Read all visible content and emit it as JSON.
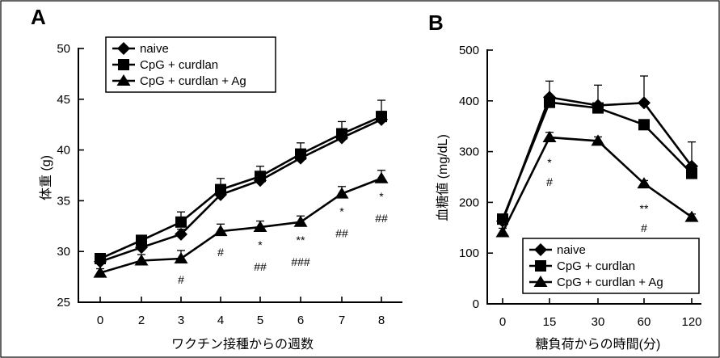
{
  "figure": {
    "panels": [
      {
        "letter": "A"
      },
      {
        "letter": "B"
      }
    ]
  },
  "chart_data": [
    {
      "panel": "A",
      "type": "line",
      "xlabel": "ワクチン接種からの週数",
      "ylabel": "体重 (g)",
      "categories": [
        "0",
        "2",
        "3",
        "4",
        "5",
        "6",
        "7",
        "8"
      ],
      "ylim": [
        25,
        50
      ],
      "yticks": [
        25,
        30,
        35,
        40,
        45,
        50
      ],
      "grid": false,
      "legend_position": "top-left",
      "series": [
        {
          "name": "naive",
          "marker": "diamond",
          "values": [
            29.0,
            30.4,
            31.7,
            35.6,
            37.0,
            39.2,
            41.2,
            43.0
          ],
          "errors": [
            0.4,
            0.4,
            0.5,
            0.6,
            0.6,
            0.6,
            0.7,
            0.8
          ]
        },
        {
          "name": "CpG + curdlan",
          "marker": "square",
          "values": [
            29.3,
            31.1,
            32.9,
            36.1,
            37.4,
            39.6,
            41.6,
            43.3
          ],
          "errors": [
            0.5,
            0.4,
            1.0,
            1.1,
            1.0,
            1.1,
            1.2,
            1.6
          ]
        },
        {
          "name": "CpG + curdlan + Ag",
          "marker": "triangle",
          "values": [
            27.9,
            29.1,
            29.3,
            32.0,
            32.4,
            32.9,
            35.7,
            37.2
          ],
          "errors": [
            0.4,
            0.6,
            0.8,
            0.7,
            0.6,
            0.6,
            0.7,
            0.8
          ]
        }
      ],
      "annotations": [
        {
          "category": "3",
          "lines": [
            "#"
          ]
        },
        {
          "category": "4",
          "lines": [
            "#"
          ]
        },
        {
          "category": "5",
          "lines": [
            "*",
            "##"
          ]
        },
        {
          "category": "6",
          "lines": [
            "**",
            "###"
          ]
        },
        {
          "category": "7",
          "lines": [
            "*",
            "##"
          ]
        },
        {
          "category": "8",
          "lines": [
            "*",
            "##"
          ]
        }
      ]
    },
    {
      "panel": "B",
      "type": "line",
      "xlabel": "糖負荷からの時間(分)",
      "ylabel": "血糖値 (mg/dL)",
      "categories": [
        "0",
        "15",
        "30",
        "60",
        "120"
      ],
      "ylim": [
        0,
        500
      ],
      "yticks": [
        0,
        100,
        200,
        300,
        400,
        500
      ],
      "grid": false,
      "legend_position": "bottom-left",
      "series": [
        {
          "name": "naive",
          "marker": "diamond",
          "values": [
            163,
            407,
            391,
            396,
            271
          ],
          "errors": [
            8,
            32,
            40,
            53,
            48
          ]
        },
        {
          "name": "CpG + curdlan",
          "marker": "square",
          "values": [
            167,
            397,
            386,
            353,
            257
          ],
          "errors": [
            8,
            10,
            8,
            8,
            10
          ]
        },
        {
          "name": "CpG + curdlan + Ag",
          "marker": "triangle",
          "values": [
            141,
            328,
            321,
            237,
            171
          ],
          "errors": [
            8,
            10,
            8,
            6,
            6
          ]
        }
      ],
      "annotations": [
        {
          "category": "15",
          "lines": [
            "*",
            "#"
          ]
        },
        {
          "category": "60",
          "lines": [
            "**",
            "#"
          ]
        },
        {
          "category": "120",
          "lines": [
            "*",
            "#"
          ]
        }
      ]
    }
  ]
}
